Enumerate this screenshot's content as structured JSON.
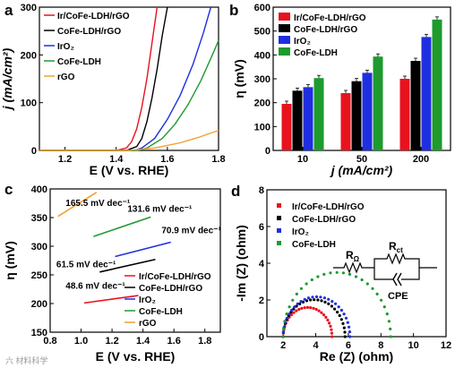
{
  "colors": {
    "ircofe": "#e8121e",
    "cofe_rgo": "#000000",
    "iro2": "#1f2fe0",
    "cofe_ldh": "#1e9a2e",
    "rgo": "#f0a030"
  },
  "watermark": "六 材料科学",
  "chart_data": [
    {
      "panel": "a",
      "type": "line",
      "xlabel": "E (V vs. RHE)",
      "ylabel": "j (mA/cm²)",
      "xlim": [
        1.1,
        1.8
      ],
      "ylim": [
        0,
        300
      ],
      "xticks": [
        "1.2",
        "1.4",
        "1.6",
        "1.8"
      ],
      "yticks": [
        "0",
        "100",
        "200",
        "300"
      ],
      "legend_position": "top-left",
      "series": [
        {
          "name": "Ir/CoFe-LDH/rGO",
          "color_key": "ircofe",
          "x": [
            1.1,
            1.4,
            1.44,
            1.46,
            1.48,
            1.5,
            1.52,
            1.54,
            1.56
          ],
          "y": [
            0,
            0,
            5,
            18,
            45,
            90,
            150,
            225,
            300
          ]
        },
        {
          "name": "CoFe-LDH/rGO",
          "color_key": "cofe_rgo",
          "x": [
            1.1,
            1.44,
            1.48,
            1.5,
            1.52,
            1.54,
            1.56,
            1.58,
            1.6
          ],
          "y": [
            0,
            0,
            8,
            25,
            60,
            110,
            170,
            240,
            300
          ]
        },
        {
          "name": "IrO₂",
          "color_key": "iro2",
          "x": [
            1.1,
            1.47,
            1.5,
            1.55,
            1.6,
            1.65,
            1.7,
            1.74,
            1.77
          ],
          "y": [
            0,
            0,
            5,
            25,
            65,
            115,
            180,
            245,
            300
          ]
        },
        {
          "name": "CoFe-LDH",
          "color_key": "cofe_ldh",
          "x": [
            1.1,
            1.48,
            1.52,
            1.58,
            1.63,
            1.68,
            1.73,
            1.78,
            1.8
          ],
          "y": [
            0,
            0,
            5,
            25,
            55,
            95,
            145,
            205,
            230
          ]
        },
        {
          "name": "rGO",
          "color_key": "rgo",
          "x": [
            1.1,
            1.45,
            1.55,
            1.65,
            1.72,
            1.8
          ],
          "y": [
            0,
            0,
            5,
            16,
            27,
            42
          ]
        }
      ]
    },
    {
      "panel": "b",
      "type": "bar",
      "xlabel": "j (mA/cm²)",
      "ylabel": "η (mV)",
      "ylim": [
        0,
        600
      ],
      "yticks": [
        "0",
        "100",
        "200",
        "300",
        "400",
        "500",
        "600"
      ],
      "categories": [
        "10",
        "50",
        "200"
      ],
      "legend_position": "top-left",
      "series": [
        {
          "name": "Ir/CoFe-LDH/rGO",
          "color_key": "ircofe",
          "values": [
            195,
            240,
            300
          ]
        },
        {
          "name": "CoFe-LDH/rGO",
          "color_key": "cofe_rgo",
          "values": [
            250,
            290,
            375
          ]
        },
        {
          "name": "IrO₂",
          "color_key": "iro2",
          "values": [
            265,
            325,
            475
          ]
        },
        {
          "name": "CoFe-LDH",
          "color_key": "cofe_ldh",
          "values": [
            303,
            393,
            548
          ]
        }
      ]
    },
    {
      "panel": "c",
      "type": "line",
      "xlabel": "E (V vs. RHE)",
      "ylabel": "η (mV)",
      "xlim": [
        0.8,
        1.9
      ],
      "ylim": [
        150,
        400
      ],
      "xticks": [
        "0.8",
        "1.0",
        "1.2",
        "1.4",
        "1.6",
        "1.8"
      ],
      "yticks": [
        "150",
        "200",
        "250",
        "300",
        "350",
        "400"
      ],
      "legend_position": "bottom-right",
      "series": [
        {
          "name": "Ir/CoFe-LDH/rGO",
          "color_key": "ircofe",
          "x": [
            1.02,
            1.37
          ],
          "y": [
            201,
            214
          ]
        },
        {
          "name": "CoFe-LDH/rGO",
          "color_key": "cofe_rgo",
          "x": [
            1.12,
            1.48
          ],
          "y": [
            255,
            277
          ]
        },
        {
          "name": "IrO₂",
          "color_key": "iro2",
          "x": [
            1.22,
            1.58
          ],
          "y": [
            282,
            307
          ]
        },
        {
          "name": "CoFe-LDH",
          "color_key": "cofe_ldh",
          "x": [
            1.08,
            1.45
          ],
          "y": [
            317,
            351
          ]
        },
        {
          "name": "rGO",
          "color_key": "rgo",
          "x": [
            0.85,
            1.1
          ],
          "y": [
            352,
            394
          ]
        }
      ],
      "annotations": [
        {
          "text": "165.5 mV dec⁻¹",
          "x": 0.9,
          "y": 370
        },
        {
          "text": "131.6 mV dec⁻¹",
          "x": 1.3,
          "y": 360
        },
        {
          "text": "70.9 mV dec⁻¹",
          "x": 1.52,
          "y": 323
        },
        {
          "text": "61.5 mV dec⁻¹",
          "x": 0.84,
          "y": 263
        },
        {
          "text": "48.6 mV dec⁻¹",
          "x": 0.9,
          "y": 226
        }
      ]
    },
    {
      "panel": "d",
      "type": "scatter",
      "xlabel": "Re (Z) (ohm)",
      "ylabel": "-Im (Z) (ohm)",
      "xlim": [
        1,
        12
      ],
      "ylim": [
        0,
        8
      ],
      "xticks": [
        "2",
        "4",
        "6",
        "8",
        "10",
        "12"
      ],
      "yticks": [
        "0",
        "2",
        "4",
        "6",
        "8"
      ],
      "legend_position": "top-left",
      "series": [
        {
          "name": "Ir/CoFe-LDH/rGO",
          "color_key": "ircofe",
          "r0": 2.0,
          "r1": 5.0
        },
        {
          "name": "CoFe-LDH/rGO",
          "color_key": "cofe_rgo",
          "r0": 2.0,
          "r1": 5.8
        },
        {
          "name": "IrO₂",
          "color_key": "iro2",
          "r0": 2.0,
          "r1": 6.1
        },
        {
          "name": "CoFe-LDH",
          "color_key": "cofe_ldh",
          "r0": 2.0,
          "r1": 8.6
        }
      ],
      "circuit_labels": {
        "rs": "R",
        "rs_sub": "Ω",
        "rct": "R",
        "rct_sub": "ct",
        "cpe": "CPE"
      }
    }
  ]
}
